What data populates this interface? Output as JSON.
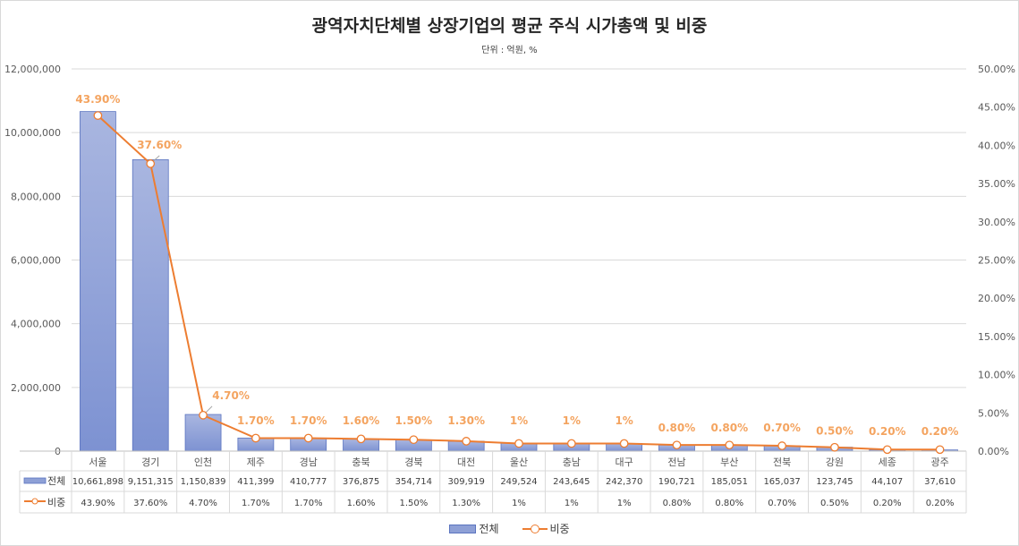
{
  "chart_data": {
    "type": "bar",
    "title": "광역자치단체별 상장기업의 평균 주식 시가총액 및 비중",
    "subtitle": "단위 : 억원, %",
    "categories": [
      "서울",
      "경기",
      "인천",
      "제주",
      "경남",
      "충북",
      "경북",
      "대전",
      "울산",
      "충남",
      "대구",
      "전남",
      "부산",
      "전북",
      "강원",
      "세종",
      "광주"
    ],
    "series": [
      {
        "name": "전체",
        "type": "bar",
        "axis": "left",
        "color": "#8ea0d6",
        "values": [
          10661898,
          9151315,
          1150839,
          411399,
          410777,
          376875,
          354714,
          309919,
          249524,
          243645,
          242370,
          190721,
          185051,
          165037,
          123745,
          44107,
          37610
        ],
        "table_labels": [
          "10,661,898",
          "9,151,315",
          "1,150,839",
          "411,399",
          "410,777",
          "376,875",
          "354,714",
          "309,919",
          "249,524",
          "243,645",
          "242,370",
          "190,721",
          "185,051",
          "165,037",
          "123,745",
          "44,107",
          "37,610"
        ]
      },
      {
        "name": "비중",
        "type": "line",
        "axis": "right",
        "color": "#ed7d31",
        "values": [
          43.9,
          37.6,
          4.7,
          1.7,
          1.7,
          1.6,
          1.5,
          1.3,
          1,
          1,
          1,
          0.8,
          0.8,
          0.7,
          0.5,
          0.2,
          0.2
        ],
        "table_labels": [
          "43.90%",
          "37.60%",
          "4.70%",
          "1.70%",
          "1.70%",
          "1.60%",
          "1.50%",
          "1.30%",
          "1%",
          "1%",
          "1%",
          "0.80%",
          "0.80%",
          "0.70%",
          "0.50%",
          "0.20%",
          "0.20%"
        ]
      }
    ],
    "ylim_left": [
      0,
      12000000
    ],
    "ylim_right": [
      0,
      50
    ],
    "yticks_left": [
      "0",
      "2,000,000",
      "4,000,000",
      "6,000,000",
      "8,000,000",
      "10,000,000",
      "12,000,000"
    ],
    "yticks_right": [
      "0.00%",
      "5.00%",
      "10.00%",
      "15.00%",
      "20.00%",
      "25.00%",
      "30.00%",
      "35.00%",
      "40.00%",
      "45.00%",
      "50.00%"
    ],
    "grid": true,
    "data_table": true,
    "legend": "bottom"
  }
}
